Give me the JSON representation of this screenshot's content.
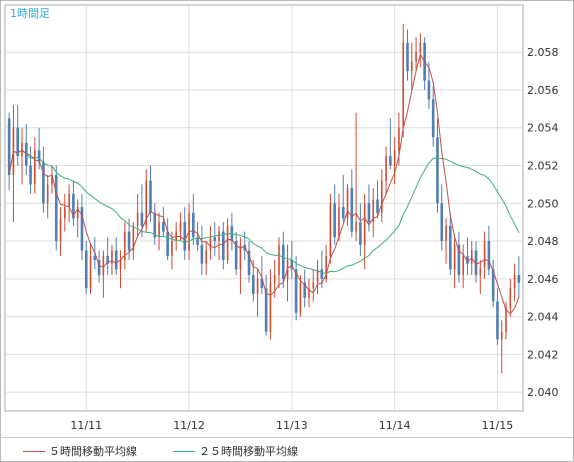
{
  "chart_data": {
    "type": "candlestick",
    "title": "1時間足",
    "ylim": [
      2.039,
      2.0605
    ],
    "y_ticks": [
      "2.040",
      "2.042",
      "2.044",
      "2.046",
      "2.048",
      "2.050",
      "2.052",
      "2.054",
      "2.056",
      "2.058"
    ],
    "x_ticks": [
      {
        "label": "11/11",
        "pos": 18
      },
      {
        "label": "11/12",
        "pos": 42
      },
      {
        "label": "11/13",
        "pos": 66
      },
      {
        "label": "11/14",
        "pos": 90
      },
      {
        "label": "11/15",
        "pos": 114
      }
    ],
    "candles": [
      [
        2.0545,
        2.0548,
        2.0507,
        2.0515
      ],
      [
        2.0515,
        2.0552,
        2.049,
        2.054
      ],
      [
        2.054,
        2.0552,
        2.052,
        2.0525
      ],
      [
        2.0525,
        2.054,
        2.051,
        2.0532
      ],
      [
        2.0532,
        2.0542,
        2.0515,
        2.052
      ],
      [
        2.052,
        2.053,
        2.0505,
        2.051
      ],
      [
        2.051,
        2.0535,
        2.0505,
        2.0528
      ],
      [
        2.0528,
        2.054,
        2.0518,
        2.0522
      ],
      [
        2.0522,
        2.053,
        2.0495,
        2.05
      ],
      [
        2.05,
        2.0515,
        2.0492,
        2.051
      ],
      [
        2.051,
        2.052,
        2.0505,
        2.0515
      ],
      [
        2.0515,
        2.052,
        2.0475,
        2.048
      ],
      [
        2.048,
        2.0498,
        2.0472,
        2.0492
      ],
      [
        2.0492,
        2.0505,
        2.0485,
        2.0498
      ],
      [
        2.0498,
        2.051,
        2.049,
        2.0505
      ],
      [
        2.0505,
        2.0512,
        2.0488,
        2.0492
      ],
      [
        2.0492,
        2.0502,
        2.0482,
        2.0498
      ],
      [
        2.0498,
        2.0505,
        2.047,
        2.0475
      ],
      [
        2.0475,
        2.048,
        2.0452,
        2.0455
      ],
      [
        2.0455,
        2.0478,
        2.0452,
        2.0472
      ],
      [
        2.0472,
        2.0482,
        2.0465,
        2.047
      ],
      [
        2.047,
        2.0475,
        2.0458,
        2.0462
      ],
      [
        2.0462,
        2.0475,
        2.045,
        2.0472
      ],
      [
        2.0472,
        2.0482,
        2.0462,
        2.0468
      ],
      [
        2.0468,
        2.0478,
        2.0462,
        2.0475
      ],
      [
        2.0475,
        2.0482,
        2.0462,
        2.0465
      ],
      [
        2.0465,
        2.0475,
        2.0455,
        2.047
      ],
      [
        2.047,
        2.049,
        2.0465,
        2.0485
      ],
      [
        2.0485,
        2.0492,
        2.047,
        2.0475
      ],
      [
        2.0475,
        2.049,
        2.047,
        2.0488
      ],
      [
        2.0488,
        2.0505,
        2.0482,
        2.0495
      ],
      [
        2.0495,
        2.051,
        2.0482,
        2.0488
      ],
      [
        2.0488,
        2.0518,
        2.0485,
        2.0512
      ],
      [
        2.0512,
        2.052,
        2.049,
        2.0495
      ],
      [
        2.0495,
        2.05,
        2.0478,
        2.0482
      ],
      [
        2.0482,
        2.0495,
        2.0475,
        2.049
      ],
      [
        2.049,
        2.0498,
        2.0482,
        2.0485
      ],
      [
        2.0485,
        2.0492,
        2.047,
        2.0472
      ],
      [
        2.0472,
        2.0485,
        2.0465,
        2.048
      ],
      [
        2.048,
        2.049,
        2.0475,
        2.0485
      ],
      [
        2.0485,
        2.0495,
        2.048,
        2.049
      ],
      [
        2.049,
        2.0498,
        2.047,
        2.0475
      ],
      [
        2.0475,
        2.05,
        2.047,
        2.0495
      ],
      [
        2.0495,
        2.0505,
        2.0478,
        2.0482
      ],
      [
        2.0482,
        2.049,
        2.0475,
        2.0478
      ],
      [
        2.0478,
        2.0488,
        2.0462,
        2.0468
      ],
      [
        2.0468,
        2.048,
        2.0462,
        2.0475
      ],
      [
        2.0475,
        2.0488,
        2.047,
        2.0482
      ],
      [
        2.0482,
        2.049,
        2.0472,
        2.048
      ],
      [
        2.048,
        2.0488,
        2.047,
        2.0485
      ],
      [
        2.0485,
        2.049,
        2.0465,
        2.047
      ],
      [
        2.047,
        2.0492,
        2.0468,
        2.0488
      ],
      [
        2.0488,
        2.0495,
        2.0475,
        2.048
      ],
      [
        2.048,
        2.0485,
        2.0462,
        2.0465
      ],
      [
        2.0465,
        2.0482,
        2.0452,
        2.0478
      ],
      [
        2.0478,
        2.0485,
        2.047,
        2.0475
      ],
      [
        2.0475,
        2.048,
        2.0458,
        2.0462
      ],
      [
        2.0462,
        2.047,
        2.0448,
        2.0452
      ],
      [
        2.0452,
        2.0465,
        2.044,
        2.046
      ],
      [
        2.046,
        2.0472,
        2.0452,
        2.0455
      ],
      [
        2.0455,
        2.0462,
        2.043,
        2.0432
      ],
      [
        2.0432,
        2.0465,
        2.0428,
        2.0458
      ],
      [
        2.0458,
        2.047,
        2.045,
        2.0462
      ],
      [
        2.0462,
        2.0482,
        2.0455,
        2.0478
      ],
      [
        2.0478,
        2.0485,
        2.0455,
        2.046
      ],
      [
        2.046,
        2.0478,
        2.0448,
        2.047
      ],
      [
        2.047,
        2.048,
        2.046,
        2.0465
      ],
      [
        2.0465,
        2.0472,
        2.0438,
        2.0442
      ],
      [
        2.0442,
        2.0462,
        2.044,
        2.0458
      ],
      [
        2.0458,
        2.0465,
        2.0445,
        2.045
      ],
      [
        2.045,
        2.046,
        2.0445,
        2.0455
      ],
      [
        2.0455,
        2.0465,
        2.0448,
        2.0458
      ],
      [
        2.0458,
        2.047,
        2.0452,
        2.0465
      ],
      [
        2.0465,
        2.0475,
        2.0455,
        2.046
      ],
      [
        2.046,
        2.0478,
        2.0458,
        2.0472
      ],
      [
        2.0472,
        2.0505,
        2.0468,
        2.05
      ],
      [
        2.05,
        2.051,
        2.0478,
        2.0482
      ],
      [
        2.0482,
        2.0505,
        2.048,
        2.0498
      ],
      [
        2.0498,
        2.0515,
        2.049,
        2.0492
      ],
      [
        2.0492,
        2.051,
        2.0488,
        2.0508
      ],
      [
        2.0508,
        2.0518,
        2.0482,
        2.0485
      ],
      [
        2.0485,
        2.0548,
        2.048,
        2.049
      ],
      [
        2.049,
        2.05,
        2.0472,
        2.0478
      ],
      [
        2.0478,
        2.0505,
        2.0465,
        2.05
      ],
      [
        2.05,
        2.051,
        2.0485,
        2.049
      ],
      [
        2.049,
        2.0508,
        2.0482,
        2.0502
      ],
      [
        2.0502,
        2.0512,
        2.0492,
        2.0495
      ],
      [
        2.0495,
        2.0518,
        2.049,
        2.0512
      ],
      [
        2.0512,
        2.053,
        2.0505,
        2.0525
      ],
      [
        2.0525,
        2.0545,
        2.0518,
        2.052
      ],
      [
        2.052,
        2.0535,
        2.051,
        2.0528
      ],
      [
        2.0528,
        2.0548,
        2.052,
        2.054
      ],
      [
        2.054,
        2.0595,
        2.0535,
        2.0585
      ],
      [
        2.0585,
        2.0592,
        2.0565,
        2.057
      ],
      [
        2.057,
        2.0585,
        2.056,
        2.0575
      ],
      [
        2.0575,
        2.0588,
        2.057,
        2.058
      ],
      [
        2.058,
        2.059,
        2.0572,
        2.0585
      ],
      [
        2.0585,
        2.0588,
        2.056,
        2.0565
      ],
      [
        2.0565,
        2.0575,
        2.055,
        2.0555
      ],
      [
        2.0555,
        2.0562,
        2.053,
        2.0535
      ],
      [
        2.0535,
        2.0545,
        2.0495,
        2.05
      ],
      [
        2.05,
        2.051,
        2.0475,
        2.048
      ],
      [
        2.048,
        2.0492,
        2.0468,
        2.0488
      ],
      [
        2.0488,
        2.0495,
        2.0462,
        2.0465
      ],
      [
        2.0465,
        2.0482,
        2.0455,
        2.0478
      ],
      [
        2.0478,
        2.0485,
        2.0458,
        2.0462
      ],
      [
        2.0462,
        2.0478,
        2.0455,
        2.0472
      ],
      [
        2.0472,
        2.0482,
        2.0462,
        2.0468
      ],
      [
        2.0468,
        2.048,
        2.0462,
        2.0475
      ],
      [
        2.0475,
        2.048,
        2.0458,
        2.0462
      ],
      [
        2.0462,
        2.047,
        2.0452,
        2.0466
      ],
      [
        2.0466,
        2.0485,
        2.046,
        2.048
      ],
      [
        2.048,
        2.0488,
        2.0462,
        2.0465
      ],
      [
        2.0465,
        2.047,
        2.0445,
        2.0448
      ],
      [
        2.0448,
        2.0455,
        2.0425,
        2.0428
      ],
      [
        2.0428,
        2.0438,
        2.041,
        2.0432
      ],
      [
        2.0432,
        2.0448,
        2.0428,
        2.0445
      ],
      [
        2.0445,
        2.046,
        2.044,
        2.0455
      ],
      [
        2.0455,
        2.0468,
        2.0448,
        2.0462
      ],
      [
        2.0462,
        2.0472,
        2.045,
        2.0458
      ]
    ],
    "series": [
      {
        "name": "５時間移動平均線",
        "color": "#c0504d"
      },
      {
        "name": "２５時間移動平均線",
        "color": "#3fae7a"
      }
    ],
    "colors": {
      "up": "#d24a32",
      "down": "#4f7fb5",
      "grid": "#dcdcdc"
    }
  }
}
